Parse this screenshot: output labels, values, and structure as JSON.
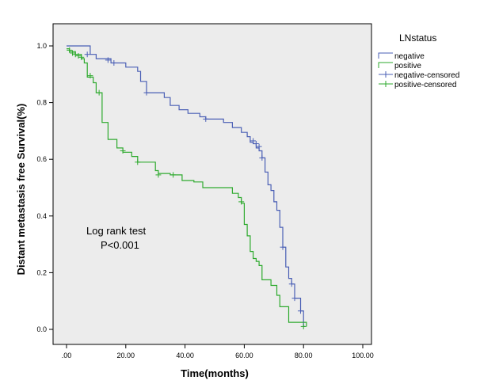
{
  "chart_data": {
    "type": "line",
    "subtype": "kaplan-meier step",
    "xlabel": "Time(months)",
    "ylabel": "Distant metastasis free Survival(%)",
    "xlim": [
      0,
      100
    ],
    "ylim": [
      0,
      1.0
    ],
    "x_ticks": [
      ".00",
      "20.00",
      "40.00",
      "60.00",
      "80.00",
      "100.00"
    ],
    "y_ticks": [
      "0.0",
      "0.2",
      "0.4",
      "0.6",
      "0.8",
      "1.0"
    ],
    "grid": false,
    "background": "#ececec",
    "annotation": [
      "Log rank test",
      "P<0.001"
    ],
    "legend": {
      "title": "LNstatus",
      "position": "right",
      "entries": [
        "negative",
        "positive",
        "negative-censored",
        "positive-censored"
      ]
    },
    "series": [
      {
        "name": "negative",
        "color": "#4a5fb5",
        "steps": [
          [
            0,
            1.0
          ],
          [
            8,
            0.97
          ],
          [
            10,
            0.955
          ],
          [
            15,
            0.94
          ],
          [
            20,
            0.925
          ],
          [
            24,
            0.91
          ],
          [
            25,
            0.875
          ],
          [
            27,
            0.835
          ],
          [
            33,
            0.818
          ],
          [
            35,
            0.79
          ],
          [
            38,
            0.775
          ],
          [
            41,
            0.762
          ],
          [
            45,
            0.75
          ],
          [
            47,
            0.742
          ],
          [
            53,
            0.73
          ],
          [
            56,
            0.712
          ],
          [
            59,
            0.695
          ],
          [
            61,
            0.68
          ],
          [
            62,
            0.66
          ],
          [
            63,
            0.655
          ],
          [
            64,
            0.64
          ],
          [
            65,
            0.63
          ],
          [
            66,
            0.605
          ],
          [
            67,
            0.555
          ],
          [
            68,
            0.51
          ],
          [
            69,
            0.49
          ],
          [
            70,
            0.45
          ],
          [
            71,
            0.42
          ],
          [
            72,
            0.36
          ],
          [
            73,
            0.29
          ],
          [
            74,
            0.22
          ],
          [
            75,
            0.18
          ],
          [
            76,
            0.16
          ],
          [
            77,
            0.11
          ],
          [
            79,
            0.065
          ],
          [
            80,
            0.01
          ],
          [
            80.5,
            0.01
          ]
        ],
        "censored": [
          [
            7,
            0.97
          ],
          [
            14,
            0.95
          ],
          [
            16,
            0.94
          ],
          [
            27,
            0.835
          ],
          [
            47,
            0.742
          ],
          [
            63,
            0.665
          ],
          [
            64,
            0.655
          ],
          [
            65,
            0.645
          ],
          [
            66,
            0.605
          ],
          [
            73,
            0.29
          ],
          [
            76,
            0.16
          ],
          [
            77,
            0.11
          ],
          [
            79,
            0.065
          ]
        ]
      },
      {
        "name": "positive",
        "color": "#2eaa2e",
        "steps": [
          [
            0,
            0.99
          ],
          [
            1,
            0.98
          ],
          [
            3,
            0.97
          ],
          [
            5,
            0.955
          ],
          [
            6,
            0.94
          ],
          [
            7,
            0.89
          ],
          [
            9,
            0.87
          ],
          [
            10,
            0.835
          ],
          [
            12,
            0.73
          ],
          [
            14,
            0.67
          ],
          [
            17,
            0.64
          ],
          [
            19,
            0.625
          ],
          [
            22,
            0.61
          ],
          [
            24,
            0.59
          ],
          [
            30,
            0.56
          ],
          [
            31,
            0.55
          ],
          [
            35,
            0.545
          ],
          [
            39,
            0.525
          ],
          [
            43,
            0.52
          ],
          [
            46,
            0.5
          ],
          [
            56,
            0.48
          ],
          [
            58,
            0.465
          ],
          [
            59,
            0.445
          ],
          [
            60,
            0.37
          ],
          [
            61,
            0.33
          ],
          [
            62,
            0.275
          ],
          [
            63,
            0.25
          ],
          [
            64,
            0.24
          ],
          [
            65,
            0.225
          ],
          [
            66,
            0.175
          ],
          [
            69,
            0.155
          ],
          [
            71,
            0.12
          ],
          [
            72,
            0.08
          ],
          [
            75,
            0.025
          ],
          [
            80,
            0.025
          ],
          [
            81,
            0.01
          ]
        ],
        "censored": [
          [
            1,
            0.985
          ],
          [
            2,
            0.975
          ],
          [
            3,
            0.97
          ],
          [
            4,
            0.965
          ],
          [
            5,
            0.96
          ],
          [
            8,
            0.895
          ],
          [
            11,
            0.835
          ],
          [
            19,
            0.63
          ],
          [
            24,
            0.59
          ],
          [
            31,
            0.545
          ],
          [
            36,
            0.545
          ],
          [
            59,
            0.45
          ],
          [
            80,
            0.01
          ]
        ]
      }
    ]
  }
}
